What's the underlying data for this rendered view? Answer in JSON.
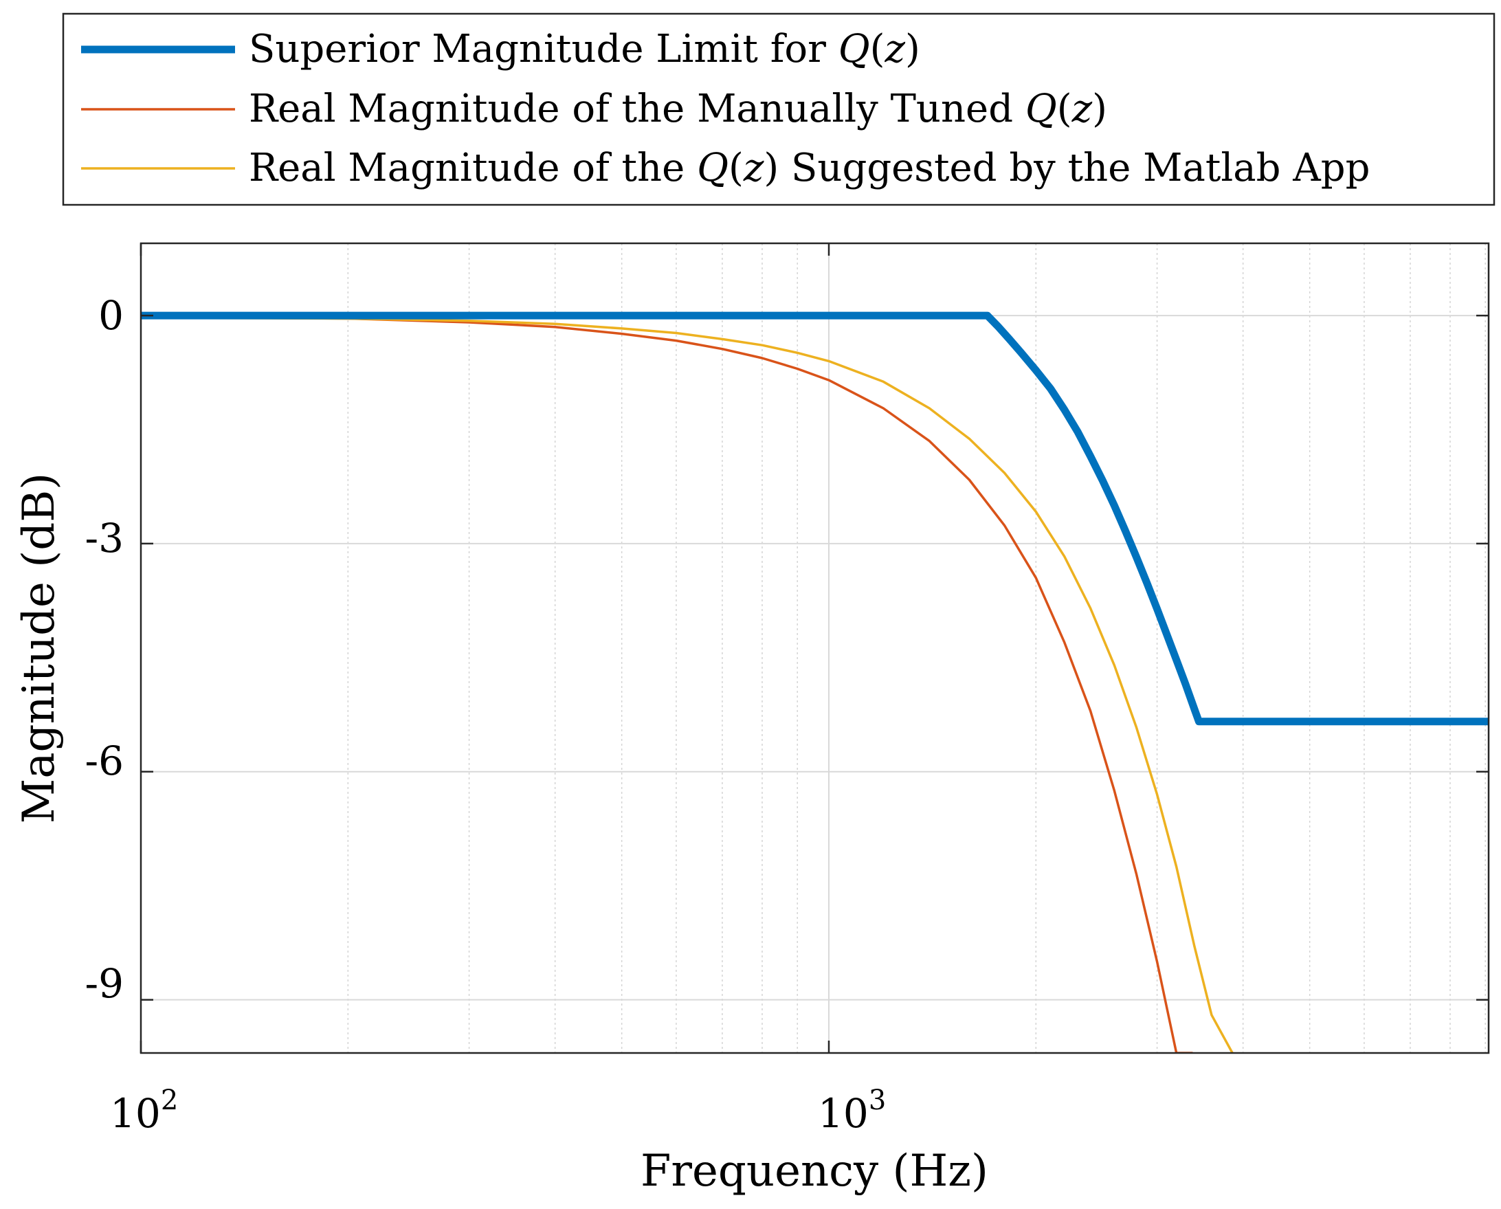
{
  "chart_data": {
    "type": "line",
    "title": "",
    "xlabel": "Frequency (Hz)",
    "ylabel": "Magnitude (dB)",
    "xscale": "log",
    "xlim": [
      100,
      9100
    ],
    "ylim": [
      -9.7,
      0.95
    ],
    "grid": true,
    "legend_position": "top (outside, above axes)",
    "yticks": [
      {
        "value": 0,
        "label": "0"
      },
      {
        "value": -3,
        "label": "-3"
      },
      {
        "value": -6,
        "label": "-6"
      },
      {
        "value": -9,
        "label": "-9"
      }
    ],
    "xticks": [
      {
        "value": 100,
        "base": "10",
        "exp": "2"
      },
      {
        "value": 1000,
        "base": "10",
        "exp": "3"
      }
    ],
    "series": [
      {
        "name": "Superior Magnitude Limit for Q(z)",
        "legend_prefix": "Superior Magnitude Limit for ",
        "legend_suffix": "",
        "color": "#0072BD",
        "width": 11,
        "x": [
          100,
          300,
          1000,
          1700,
          1760,
          1830,
          1900,
          2000,
          2100,
          2200,
          2300,
          2400,
          2500,
          2600,
          2700,
          2800,
          2900,
          3000,
          3100,
          3200,
          3300,
          3400,
          3450,
          9100
        ],
        "y": [
          0,
          0,
          0,
          0,
          -0.14,
          -0.31,
          -0.48,
          -0.72,
          -0.96,
          -1.24,
          -1.53,
          -1.85,
          -2.17,
          -2.5,
          -2.84,
          -3.18,
          -3.52,
          -3.86,
          -4.2,
          -4.53,
          -4.85,
          -5.18,
          -5.34,
          -5.34
        ]
      },
      {
        "name": "Real Magnitude of the Manually Tuned Q(z)",
        "legend_prefix": "Real Magnitude of the Manually Tuned ",
        "legend_suffix": "",
        "color": "#D95319",
        "width": 3.5,
        "x": [
          100,
          200,
          300,
          400,
          500,
          600,
          700,
          800,
          900,
          1000,
          1200,
          1400,
          1600,
          1800,
          2000,
          2200,
          2400,
          2600,
          2800,
          3000,
          3200,
          3380
        ],
        "y": [
          -0.02,
          -0.04,
          -0.09,
          -0.15,
          -0.24,
          -0.33,
          -0.44,
          -0.56,
          -0.7,
          -0.85,
          -1.22,
          -1.65,
          -2.16,
          -2.76,
          -3.45,
          -4.3,
          -5.2,
          -6.25,
          -7.35,
          -8.5,
          -9.7,
          -9.7
        ]
      },
      {
        "name": "Real Magnitude of the Q(z) Suggested by the Matlab App",
        "legend_prefix": "Real Magnitude of the ",
        "legend_suffix": " Suggested by the Matlab App",
        "color": "#EDB120",
        "width": 3.5,
        "x": [
          100,
          200,
          300,
          400,
          500,
          600,
          700,
          800,
          900,
          1000,
          1200,
          1400,
          1600,
          1800,
          2000,
          2200,
          2400,
          2600,
          2800,
          3000,
          3200,
          3400,
          3600,
          3860
        ],
        "y": [
          -0.03,
          -0.04,
          -0.07,
          -0.11,
          -0.17,
          -0.23,
          -0.31,
          -0.39,
          -0.49,
          -0.6,
          -0.87,
          -1.22,
          -1.62,
          -2.07,
          -2.58,
          -3.17,
          -3.85,
          -4.6,
          -5.42,
          -6.3,
          -7.25,
          -8.3,
          -9.2,
          -9.7
        ]
      }
    ]
  },
  "legend": {
    "q_symbol": "Q",
    "open_paren": "(",
    "z_symbol": "z",
    "close_paren": ")"
  }
}
